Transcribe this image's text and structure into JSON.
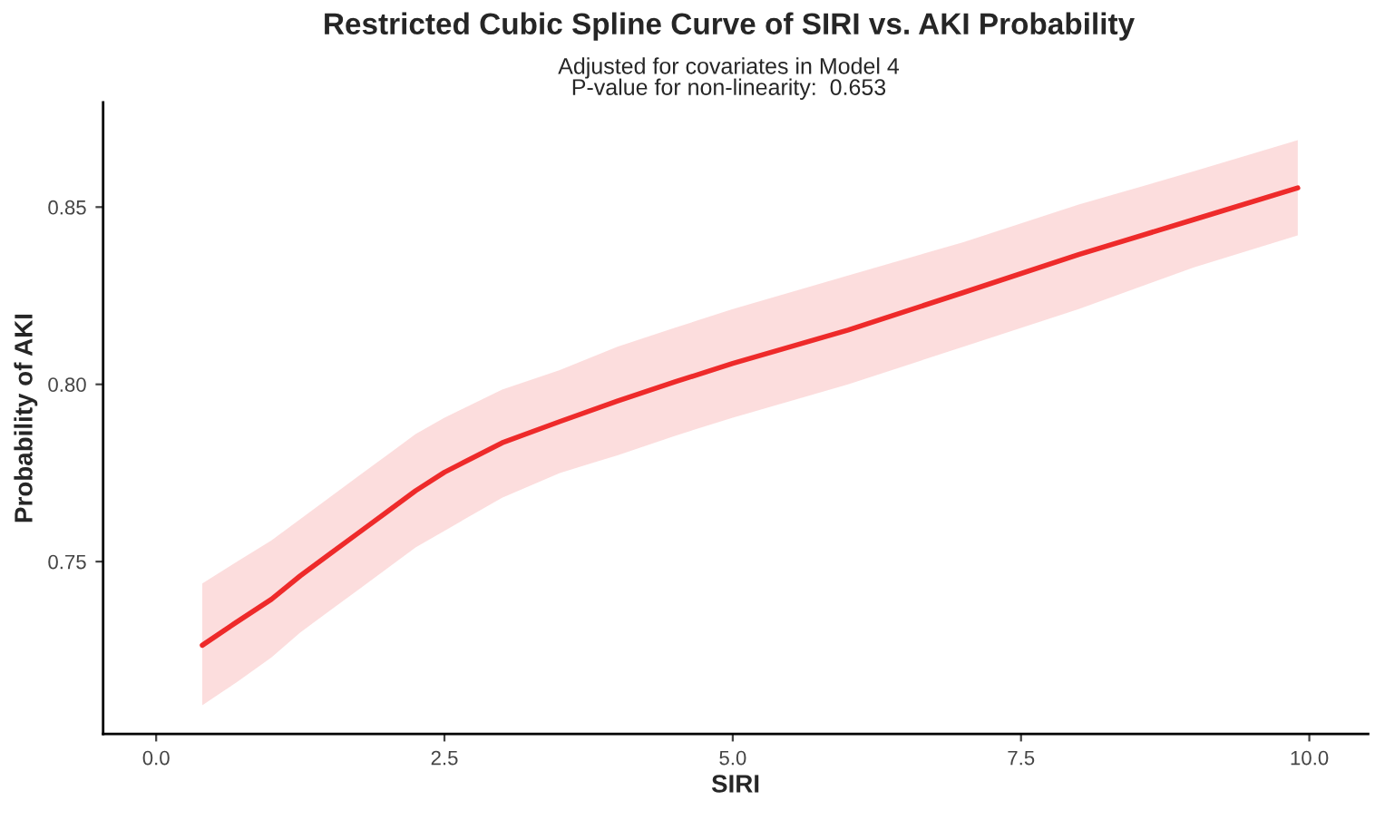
{
  "chart_data": {
    "type": "line",
    "title": "Restricted Cubic Spline Curve of SIRI vs. AKI Probability",
    "subtitle": "Adjusted for covariates in Model 4\nP-value for non-linearity:  0.653",
    "xlabel": "SIRI",
    "ylabel": "Probability of AKI",
    "x": [
      0.4,
      0.7,
      1.0,
      1.25,
      1.5,
      1.75,
      2.0,
      2.25,
      2.5,
      3.0,
      3.5,
      4.0,
      4.5,
      5.0,
      6.0,
      7.0,
      8.0,
      9.0,
      9.9
    ],
    "series": [
      {
        "color": "#ee2a2a",
        "values": [
          0.7264,
          0.733,
          0.7394,
          0.746,
          0.752,
          0.758,
          0.764,
          0.77,
          0.7752,
          0.7835,
          0.7895,
          0.7953,
          0.8007,
          0.8059,
          0.8153,
          0.8259,
          0.8366,
          0.8465,
          0.8554
        ],
        "lower": [
          0.7095,
          0.716,
          0.723,
          0.73,
          0.736,
          0.742,
          0.748,
          0.754,
          0.7587,
          0.768,
          0.775,
          0.78,
          0.7855,
          0.7906,
          0.8,
          0.8106,
          0.8212,
          0.833,
          0.842
        ],
        "upper": [
          0.7438,
          0.75,
          0.756,
          0.762,
          0.768,
          0.774,
          0.78,
          0.786,
          0.7906,
          0.7985,
          0.804,
          0.8106,
          0.816,
          0.8212,
          0.8307,
          0.8401,
          0.8507,
          0.8601,
          0.8689
        ]
      }
    ],
    "xlim": [
      -0.46,
      10.51
    ],
    "ylim": [
      0.7014,
      0.8795
    ],
    "xticks": [
      {
        "value": 0,
        "label": "0.0"
      },
      2.5,
      {
        "value": 5,
        "label": "5.0"
      },
      7.5,
      {
        "value": 10,
        "label": "10.0"
      }
    ],
    "yticks": [
      0.75,
      {
        "value": 0.8,
        "label": "0.80"
      },
      0.85
    ],
    "grid": false,
    "marker": "none",
    "line_style": "solid"
  }
}
